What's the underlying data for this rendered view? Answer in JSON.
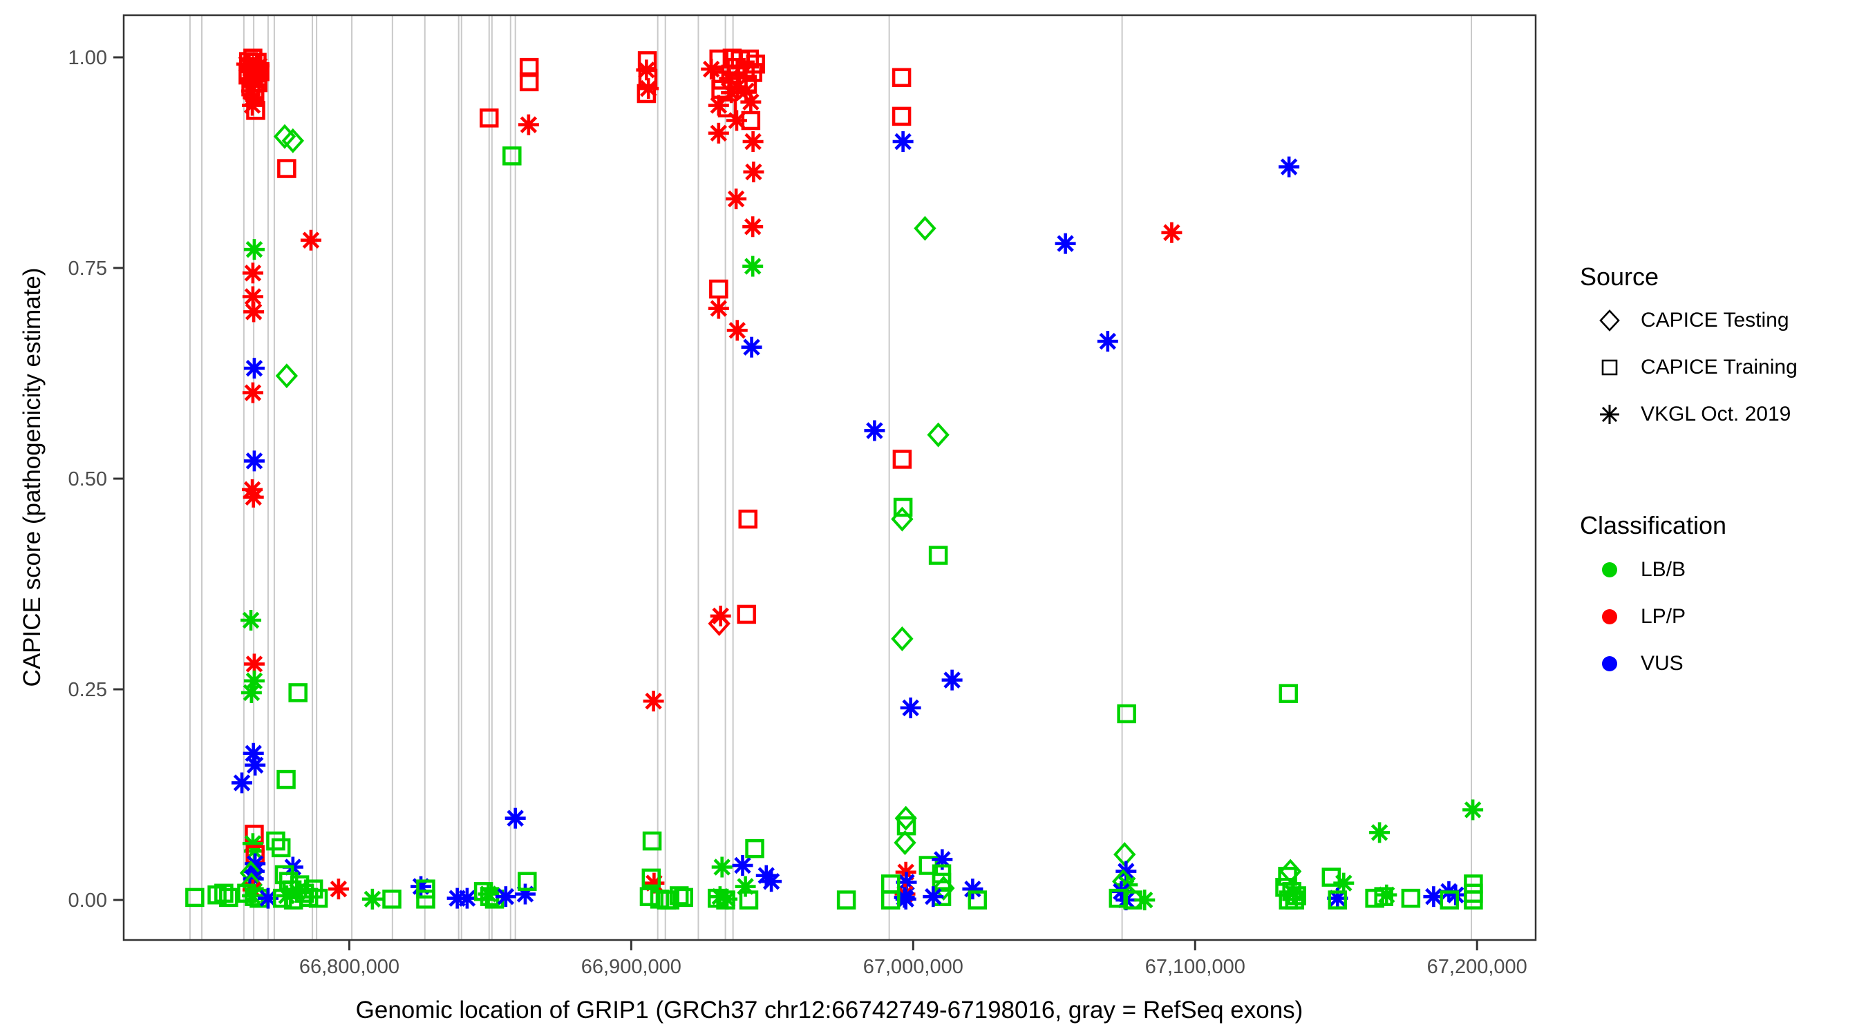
{
  "chart_data": {
    "type": "scatter",
    "title": "",
    "xlabel": "Genomic location of GRIP1 (GRCh37 chr12:66742749-67198016, gray = RefSeq exons)",
    "ylabel": "CAPICE score (pathogenicity estimate)",
    "xlim": [
      66719990,
      67220780
    ],
    "ylim": [
      -0.0475,
      1.05
    ],
    "x_ticks": [
      66800000,
      66900000,
      67000000,
      67100000,
      67200000
    ],
    "x_tick_labels": [
      "66,800,000",
      "66,900,000",
      "67,000,000",
      "67,100,000",
      "67,200,000"
    ],
    "y_ticks": [
      0,
      0.25,
      0.5,
      0.75,
      1
    ],
    "y_tick_labels": [
      "0.00",
      "0.25",
      "0.50",
      "0.75",
      "1.00"
    ],
    "grid": "off",
    "exon_note": "gray vertical lines = RefSeq exons",
    "exons": [
      66743500,
      66747700,
      66762600,
      66766100,
      66771200,
      66773400,
      66786900,
      66788400,
      66800900,
      66815300,
      66826800,
      66838800,
      66839800,
      66849600,
      66850600,
      66857200,
      66858900,
      66909400,
      66912100,
      66923800,
      66933400,
      66936100,
      66991500,
      67074100,
      67198000
    ],
    "legend": {
      "source_title": "Source",
      "sources": [
        {
          "code": "te",
          "label": "CAPICE Testing",
          "marker": "diamond-open"
        },
        {
          "code": "tr",
          "label": "CAPICE Training",
          "marker": "square-open"
        },
        {
          "code": "vk",
          "label": "VKGL Oct. 2019",
          "marker": "asterisk"
        }
      ],
      "class_title": "Classification",
      "classes": [
        {
          "code": "g",
          "label": "LB/B",
          "color": "#00d300"
        },
        {
          "code": "r",
          "label": "LP/P",
          "color": "#ff0000"
        },
        {
          "code": "b",
          "label": "VUS",
          "color": "#0000ff"
        }
      ],
      "position": "right"
    },
    "colors": {
      "g": "#00d300",
      "r": "#ff0000",
      "b": "#0000ff",
      "exon": "#c9c9c9",
      "panel_border": "#333333",
      "tick": "#333333",
      "tick_label": "#4d4d4d"
    },
    "points": [
      [
        66765800,
        0.999,
        "tr",
        "r"
      ],
      [
        66764300,
        0.995,
        "tr",
        "r"
      ],
      [
        66767300,
        0.994,
        "tr",
        "r"
      ],
      [
        66765500,
        0.989,
        "tr",
        "r"
      ],
      [
        66766800,
        0.985,
        "tr",
        "r"
      ],
      [
        66768300,
        0.983,
        "tr",
        "r"
      ],
      [
        66764100,
        0.979,
        "tr",
        "r"
      ],
      [
        66766000,
        0.975,
        "tr",
        "r"
      ],
      [
        66767600,
        0.97,
        "tr",
        "r"
      ],
      [
        66765100,
        0.965,
        "tr",
        "r"
      ],
      [
        66766500,
        0.958,
        "tr",
        "r"
      ],
      [
        66766800,
        0.937,
        "tr",
        "r"
      ],
      [
        66763600,
        0.992,
        "vk",
        "r"
      ],
      [
        66768000,
        0.99,
        "vk",
        "r"
      ],
      [
        66764800,
        0.983,
        "vk",
        "r"
      ],
      [
        66766300,
        0.972,
        "vk",
        "r"
      ],
      [
        66765300,
        0.96,
        "vk",
        "r"
      ],
      [
        66765900,
        0.952,
        "vk",
        "r"
      ],
      [
        66765600,
        0.943,
        "vk",
        "r"
      ],
      [
        66777100,
        0.906,
        "te",
        "g"
      ],
      [
        66780000,
        0.901,
        "te",
        "g"
      ],
      [
        66777800,
        0.868,
        "tr",
        "r"
      ],
      [
        66786400,
        0.783,
        "vk",
        "r"
      ],
      [
        66766300,
        0.772,
        "vk",
        "g"
      ],
      [
        66765800,
        0.744,
        "vk",
        "r"
      ],
      [
        66765800,
        0.716,
        "vk",
        "r"
      ],
      [
        66766100,
        0.698,
        "vk",
        "r"
      ],
      [
        66766300,
        0.631,
        "vk",
        "b"
      ],
      [
        66777800,
        0.622,
        "te",
        "g"
      ],
      [
        66765800,
        0.602,
        "vk",
        "r"
      ],
      [
        66766300,
        0.521,
        "vk",
        "b"
      ],
      [
        66765600,
        0.487,
        "vk",
        "r"
      ],
      [
        66766000,
        0.478,
        "vk",
        "r"
      ],
      [
        66765100,
        0.332,
        "vk",
        "g"
      ],
      [
        66766300,
        0.28,
        "vk",
        "r"
      ],
      [
        66766300,
        0.26,
        "vk",
        "g"
      ],
      [
        66765300,
        0.246,
        "vk",
        "g"
      ],
      [
        66781800,
        0.246,
        "tr",
        "g"
      ],
      [
        66766000,
        0.174,
        "vk",
        "b"
      ],
      [
        66766600,
        0.16,
        "vk",
        "b"
      ],
      [
        66761900,
        0.139,
        "vk",
        "b"
      ],
      [
        66777600,
        0.143,
        "tr",
        "g"
      ],
      [
        66766300,
        0.078,
        "tr",
        "r"
      ],
      [
        66765800,
        0.067,
        "vk",
        "g"
      ],
      [
        66766300,
        0.058,
        "vk",
        "g"
      ],
      [
        66766600,
        0.054,
        "tr",
        "r"
      ],
      [
        66766600,
        0.043,
        "vk",
        "b"
      ],
      [
        66766300,
        0.034,
        "vk",
        "b"
      ],
      [
        66765100,
        0.032,
        "te",
        "g"
      ],
      [
        66766000,
        0.025,
        "vk",
        "b"
      ],
      [
        66765300,
        0.018,
        "te",
        "g"
      ],
      [
        66765800,
        0.012,
        "vk",
        "r"
      ],
      [
        66763600,
        0.008,
        "tr",
        "g"
      ],
      [
        66766300,
        0.004,
        "tr",
        "g"
      ],
      [
        66768000,
        0.002,
        "tr",
        "g"
      ],
      [
        66765600,
        0.005,
        "vk",
        "g"
      ],
      [
        66771200,
        0.002,
        "vk",
        "b"
      ],
      [
        66745200,
        0.003,
        "tr",
        "g"
      ],
      [
        66753100,
        0.006,
        "tr",
        "g"
      ],
      [
        66755500,
        0.008,
        "tr",
        "g"
      ],
      [
        66757200,
        0.003,
        "tr",
        "g"
      ],
      [
        66773900,
        0.07,
        "tr",
        "g"
      ],
      [
        66775800,
        0.062,
        "tr",
        "g"
      ],
      [
        66780000,
        0.039,
        "vk",
        "b"
      ],
      [
        66777000,
        0.03,
        "tr",
        "g"
      ],
      [
        66778500,
        0.022,
        "tr",
        "g"
      ],
      [
        66782400,
        0.018,
        "tr",
        "g"
      ],
      [
        66787300,
        0.013,
        "tr",
        "g"
      ],
      [
        66779700,
        0.012,
        "tr",
        "g"
      ],
      [
        66781600,
        0.01,
        "vk",
        "g"
      ],
      [
        66784100,
        0.008,
        "tr",
        "g"
      ],
      [
        66777800,
        0.005,
        "vk",
        "g"
      ],
      [
        66785600,
        0.003,
        "tr",
        "g"
      ],
      [
        66776300,
        0.002,
        "tr",
        "g"
      ],
      [
        66789000,
        0.002,
        "tr",
        "g"
      ],
      [
        66780200,
        0.0,
        "tr",
        "g"
      ],
      [
        66796200,
        0.013,
        "vk",
        "r"
      ],
      [
        66808200,
        0.001,
        "vk",
        "g"
      ],
      [
        66815100,
        0.001,
        "tr",
        "g"
      ],
      [
        66825400,
        0.016,
        "vk",
        "b"
      ],
      [
        66827100,
        0.013,
        "tr",
        "g"
      ],
      [
        66827100,
        0.001,
        "tr",
        "g"
      ],
      [
        66838300,
        0.002,
        "vk",
        "b"
      ],
      [
        66841800,
        0.002,
        "vk",
        "b"
      ],
      [
        66847600,
        0.01,
        "tr",
        "g"
      ],
      [
        66849800,
        0.004,
        "tr",
        "g"
      ],
      [
        66851500,
        0.001,
        "tr",
        "g"
      ],
      [
        66849300,
        0.007,
        "vk",
        "g"
      ],
      [
        66855500,
        0.004,
        "vk",
        "b"
      ],
      [
        66862400,
        0.007,
        "vk",
        "b"
      ],
      [
        66863100,
        0.022,
        "tr",
        "g"
      ],
      [
        66858900,
        0.097,
        "vk",
        "b"
      ],
      [
        66863800,
        0.988,
        "tr",
        "r"
      ],
      [
        66863800,
        0.971,
        "tr",
        "r"
      ],
      [
        66849600,
        0.928,
        "tr",
        "r"
      ],
      [
        66863600,
        0.92,
        "vk",
        "r"
      ],
      [
        66857700,
        0.883,
        "tr",
        "g"
      ],
      [
        66905700,
        0.996,
        "tr",
        "r"
      ],
      [
        66905900,
        0.975,
        "tr",
        "r"
      ],
      [
        66905400,
        0.985,
        "vk",
        "r"
      ],
      [
        66906100,
        0.963,
        "vk",
        "r"
      ],
      [
        66905400,
        0.957,
        "tr",
        "r"
      ],
      [
        66907900,
        0.236,
        "vk",
        "r"
      ],
      [
        66907400,
        0.07,
        "tr",
        "g"
      ],
      [
        66908100,
        0.02,
        "vk",
        "r"
      ],
      [
        66907100,
        0.026,
        "tr",
        "g"
      ],
      [
        66906400,
        0.004,
        "tr",
        "g"
      ],
      [
        66910100,
        0.001,
        "tr",
        "g"
      ],
      [
        66912500,
        0.0,
        "tr",
        "g"
      ],
      [
        66913700,
        0.0,
        "tr",
        "g"
      ],
      [
        66931100,
        0.998,
        "tr",
        "r"
      ],
      [
        66935800,
        0.999,
        "tr",
        "r"
      ],
      [
        66938700,
        0.997,
        "tr",
        "r"
      ],
      [
        66941900,
        0.998,
        "tr",
        "r"
      ],
      [
        66944100,
        0.992,
        "tr",
        "r"
      ],
      [
        66937200,
        0.988,
        "tr",
        "r"
      ],
      [
        66940400,
        0.985,
        "tr",
        "r"
      ],
      [
        66943100,
        0.982,
        "tr",
        "r"
      ],
      [
        66935300,
        0.98,
        "tr",
        "r"
      ],
      [
        66932100,
        0.973,
        "tr",
        "r"
      ],
      [
        66937900,
        0.972,
        "tr",
        "r"
      ],
      [
        66941200,
        0.968,
        "tr",
        "r"
      ],
      [
        66931800,
        0.962,
        "tr",
        "r"
      ],
      [
        66934100,
        0.94,
        "tr",
        "r"
      ],
      [
        66942400,
        0.925,
        "tr",
        "r"
      ],
      [
        66928400,
        0.986,
        "vk",
        "r"
      ],
      [
        66934800,
        0.975,
        "vk",
        "r"
      ],
      [
        66937700,
        0.965,
        "vk",
        "r"
      ],
      [
        66940700,
        0.96,
        "vk",
        "r"
      ],
      [
        66935500,
        0.958,
        "vk",
        "r"
      ],
      [
        66942400,
        0.947,
        "vk",
        "r"
      ],
      [
        66931000,
        0.943,
        "vk",
        "r"
      ],
      [
        66931000,
        0.91,
        "vk",
        "r"
      ],
      [
        66943200,
        0.9,
        "vk",
        "r"
      ],
      [
        66937400,
        0.925,
        "vk",
        "r"
      ],
      [
        66943400,
        0.864,
        "vk",
        "r"
      ],
      [
        66937200,
        0.832,
        "vk",
        "r"
      ],
      [
        66943100,
        0.799,
        "vk",
        "r"
      ],
      [
        66943100,
        0.752,
        "vk",
        "g"
      ],
      [
        66931000,
        0.725,
        "tr",
        "r"
      ],
      [
        66931000,
        0.702,
        "vk",
        "r"
      ],
      [
        66937600,
        0.676,
        "vk",
        "r"
      ],
      [
        66942700,
        0.656,
        "vk",
        "b"
      ],
      [
        66941400,
        0.452,
        "tr",
        "r"
      ],
      [
        66940900,
        0.339,
        "tr",
        "r"
      ],
      [
        66931700,
        0.337,
        "vk",
        "r"
      ],
      [
        66931200,
        0.328,
        "te",
        "r"
      ],
      [
        66995900,
        0.976,
        "tr",
        "r"
      ],
      [
        66995900,
        0.93,
        "tr",
        "r"
      ],
      [
        66996400,
        0.9,
        "vk",
        "b"
      ],
      [
        66986300,
        0.557,
        "vk",
        "b"
      ],
      [
        66996100,
        0.523,
        "tr",
        "r"
      ],
      [
        66996400,
        0.466,
        "tr",
        "g"
      ],
      [
        66996100,
        0.452,
        "te",
        "g"
      ],
      [
        66996100,
        0.31,
        "te",
        "g"
      ],
      [
        67004200,
        0.797,
        "te",
        "g"
      ],
      [
        67008900,
        0.552,
        "te",
        "g"
      ],
      [
        67008900,
        0.409,
        "tr",
        "g"
      ],
      [
        67013800,
        0.261,
        "vk",
        "b"
      ],
      [
        66999100,
        0.228,
        "vk",
        "b"
      ],
      [
        66997400,
        0.097,
        "te",
        "g"
      ],
      [
        66997600,
        0.088,
        "tr",
        "g"
      ],
      [
        66997100,
        0.068,
        "te",
        "g"
      ],
      [
        66997400,
        0.033,
        "vk",
        "r"
      ],
      [
        66997600,
        0.021,
        "vk",
        "b"
      ],
      [
        66997100,
        0.007,
        "vk",
        "r"
      ],
      [
        66997400,
        0.001,
        "vk",
        "b"
      ],
      [
        66996900,
        0.003,
        "vk",
        "b"
      ],
      [
        66992000,
        0.019,
        "tr",
        "g"
      ],
      [
        66992000,
        0.0,
        "tr",
        "g"
      ],
      [
        67005400,
        0.041,
        "tr",
        "g"
      ],
      [
        67010300,
        0.048,
        "vk",
        "b"
      ],
      [
        67010100,
        0.031,
        "tr",
        "g"
      ],
      [
        67010100,
        0.021,
        "tr",
        "g"
      ],
      [
        67010800,
        0.014,
        "te",
        "g"
      ],
      [
        67010100,
        0.004,
        "tr",
        "g"
      ],
      [
        67007100,
        0.004,
        "vk",
        "b"
      ],
      [
        67021100,
        0.013,
        "vk",
        "b"
      ],
      [
        67022800,
        0.0,
        "tr",
        "g"
      ],
      [
        66932200,
        0.039,
        "vk",
        "g"
      ],
      [
        66939500,
        0.041,
        "vk",
        "b"
      ],
      [
        66940500,
        0.016,
        "vk",
        "g"
      ],
      [
        66947900,
        0.029,
        "vk",
        "b"
      ],
      [
        66949700,
        0.022,
        "vk",
        "b"
      ],
      [
        66943800,
        0.061,
        "tr",
        "g"
      ],
      [
        66917000,
        0.005,
        "tr",
        "g"
      ],
      [
        66918600,
        0.003,
        "tr",
        "g"
      ],
      [
        66930500,
        0.002,
        "tr",
        "g"
      ],
      [
        66933500,
        0.0,
        "tr",
        "g"
      ],
      [
        66941700,
        0.0,
        "tr",
        "g"
      ],
      [
        66931500,
        0.004,
        "vk",
        "g"
      ],
      [
        66934000,
        0.001,
        "vk",
        "g"
      ],
      [
        66976300,
        0.0,
        "tr",
        "g"
      ],
      [
        67075700,
        0.221,
        "tr",
        "g"
      ],
      [
        67075000,
        0.054,
        "te",
        "g"
      ],
      [
        67075500,
        0.034,
        "vk",
        "b"
      ],
      [
        67074500,
        0.022,
        "te",
        "g"
      ],
      [
        67076000,
        0.018,
        "vk",
        "g"
      ],
      [
        67073800,
        0.01,
        "vk",
        "b"
      ],
      [
        67075500,
        0.0,
        "vk",
        "b"
      ],
      [
        67082100,
        0.0,
        "vk",
        "g"
      ],
      [
        67072800,
        0.002,
        "tr",
        "g"
      ],
      [
        67077900,
        0.0,
        "tr",
        "g"
      ],
      [
        67133300,
        0.87,
        "vk",
        "b"
      ],
      [
        67091700,
        0.792,
        "vk",
        "r"
      ],
      [
        67054000,
        0.779,
        "vk",
        "b"
      ],
      [
        67069000,
        0.663,
        "vk",
        "b"
      ],
      [
        67133100,
        0.245,
        "tr",
        "g"
      ],
      [
        67198500,
        0.107,
        "vk",
        "g"
      ],
      [
        67165400,
        0.08,
        "vk",
        "g"
      ],
      [
        67133800,
        0.034,
        "te",
        "g"
      ],
      [
        67132800,
        0.028,
        "tr",
        "g"
      ],
      [
        67131800,
        0.015,
        "tr",
        "g"
      ],
      [
        67134300,
        0.01,
        "tr",
        "g"
      ],
      [
        67136000,
        0.005,
        "tr",
        "g"
      ],
      [
        67133100,
        0.0,
        "tr",
        "g"
      ],
      [
        67135300,
        0.0,
        "tr",
        "g"
      ],
      [
        67134800,
        0.008,
        "vk",
        "g"
      ],
      [
        67148300,
        0.027,
        "tr",
        "g"
      ],
      [
        67152700,
        0.02,
        "vk",
        "g"
      ],
      [
        67150500,
        0.002,
        "vk",
        "b"
      ],
      [
        67150500,
        0.0,
        "tr",
        "g"
      ],
      [
        67163700,
        0.002,
        "tr",
        "g"
      ],
      [
        67166900,
        0.004,
        "tr",
        "g"
      ],
      [
        67167900,
        0.006,
        "vk",
        "g"
      ],
      [
        67176500,
        0.002,
        "tr",
        "g"
      ],
      [
        67184600,
        0.004,
        "vk",
        "b"
      ],
      [
        67190000,
        0.01,
        "vk",
        "b"
      ],
      [
        67192400,
        0.006,
        "vk",
        "b"
      ],
      [
        67190200,
        0.0,
        "tr",
        "g"
      ],
      [
        67198700,
        0.019,
        "tr",
        "g"
      ],
      [
        67198700,
        0.008,
        "tr",
        "g"
      ],
      [
        67198700,
        0.0,
        "tr",
        "g"
      ]
    ]
  }
}
